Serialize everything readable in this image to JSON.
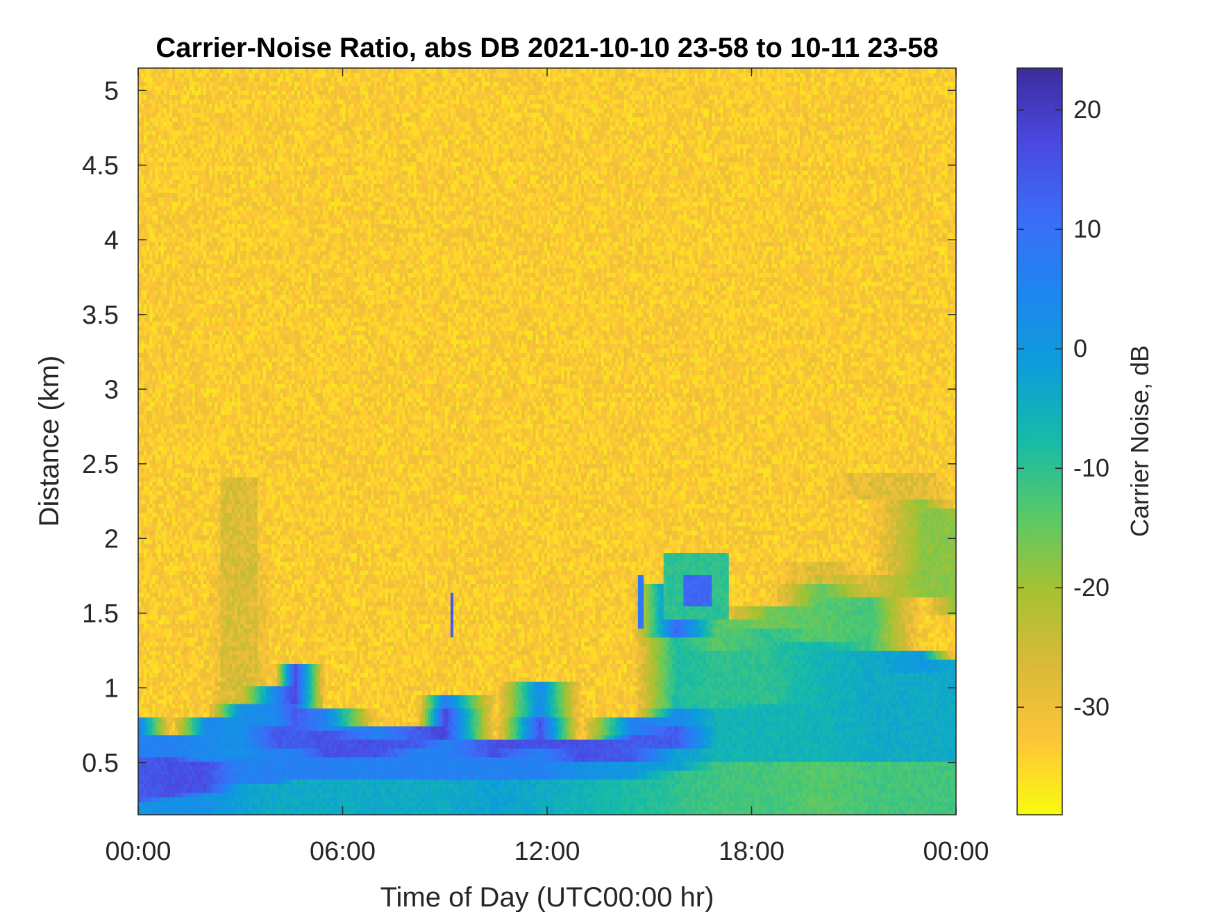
{
  "chart_data": {
    "type": "heatmap",
    "title": "Carrier-Noise Ratio, abs DB 2021-10-10 23-58 to 10-11 23-58",
    "xlabel": "Time of Day (UTC00:00 hr)",
    "ylabel": "Distance (km)",
    "xlim": [
      0,
      24
    ],
    "ylim": [
      0.15,
      5.15
    ],
    "x_ticks": [
      0,
      6,
      12,
      18,
      24
    ],
    "x_tick_labels": [
      "00:00",
      "06:00",
      "12:00",
      "18:00",
      "00:00"
    ],
    "y_ticks": [
      0.5,
      1,
      1.5,
      2,
      2.5,
      3,
      3.5,
      4,
      4.5,
      5
    ],
    "y_tick_labels": [
      "0.5",
      "1",
      "1.5",
      "2",
      "2.5",
      "3",
      "3.5",
      "4",
      "4.5",
      "5"
    ],
    "grid": false,
    "colorbar": {
      "label": "Carrier Noise, dB",
      "range": [
        -39,
        23.5
      ],
      "ticks": [
        -30,
        -20,
        -10,
        0,
        10,
        20
      ],
      "tick_labels": [
        "-30",
        "-20",
        "-10",
        "0",
        "10",
        "20"
      ],
      "colormap_stops": [
        "#f9fb0e",
        "#fec538",
        "#d9ba38",
        "#a6c232",
        "#58c968",
        "#17bba7",
        "#0c9ed9",
        "#1e86ef",
        "#3b6df8",
        "#4a48e0",
        "#3c2c9c"
      ]
    },
    "value_description_unused": "",
    "profiles": [
      {
        "t": 0.0,
        "layers": [
          [
            0.15,
            0.25,
            2
          ],
          [
            0.25,
            0.55,
            14
          ],
          [
            0.55,
            0.8,
            6
          ],
          [
            0.8,
            5.15,
            -33
          ]
        ]
      },
      {
        "t": 1.0,
        "layers": [
          [
            0.15,
            0.28,
            2
          ],
          [
            0.28,
            0.55,
            16
          ],
          [
            0.55,
            0.7,
            6
          ],
          [
            0.7,
            5.15,
            -33
          ]
        ]
      },
      {
        "t": 2.0,
        "layers": [
          [
            0.15,
            0.3,
            2
          ],
          [
            0.3,
            0.5,
            16
          ],
          [
            0.5,
            0.8,
            4
          ],
          [
            0.8,
            5.15,
            -33
          ]
        ]
      },
      {
        "t": 3.0,
        "layers": [
          [
            0.15,
            0.35,
            -2
          ],
          [
            0.35,
            0.55,
            6
          ],
          [
            0.55,
            0.9,
            2
          ],
          [
            0.9,
            1.9,
            -26
          ],
          [
            1.9,
            5.15,
            -33
          ]
        ]
      },
      {
        "t": 4.0,
        "layers": [
          [
            0.15,
            0.35,
            -4
          ],
          [
            0.35,
            0.6,
            6
          ],
          [
            0.6,
            0.75,
            14
          ],
          [
            0.75,
            1.0,
            4
          ],
          [
            1.0,
            5.15,
            -33
          ]
        ]
      },
      {
        "t": 4.6,
        "layers": [
          [
            0.15,
            0.4,
            -4
          ],
          [
            0.4,
            0.6,
            6
          ],
          [
            0.6,
            0.9,
            14
          ],
          [
            0.9,
            1.15,
            18
          ],
          [
            1.15,
            5.15,
            -33
          ]
        ]
      },
      {
        "t": 5.5,
        "layers": [
          [
            0.15,
            0.4,
            -4
          ],
          [
            0.4,
            0.55,
            6
          ],
          [
            0.55,
            0.72,
            16
          ],
          [
            0.72,
            0.85,
            6
          ],
          [
            0.85,
            5.15,
            -33
          ]
        ]
      },
      {
        "t": 7.0,
        "layers": [
          [
            0.15,
            0.4,
            -4
          ],
          [
            0.4,
            0.55,
            6
          ],
          [
            0.55,
            0.65,
            16
          ],
          [
            0.65,
            0.75,
            6
          ],
          [
            0.75,
            5.15,
            -33
          ]
        ]
      },
      {
        "t": 8.2,
        "layers": [
          [
            0.15,
            0.4,
            -4
          ],
          [
            0.4,
            0.6,
            6
          ],
          [
            0.6,
            0.75,
            14
          ],
          [
            0.75,
            5.15,
            -33
          ]
        ]
      },
      {
        "t": 9.0,
        "layers": [
          [
            0.15,
            0.4,
            -4
          ],
          [
            0.4,
            0.65,
            6
          ],
          [
            0.65,
            0.85,
            18
          ],
          [
            0.85,
            0.95,
            8
          ],
          [
            0.95,
            5.15,
            -33
          ]
        ]
      },
      {
        "t": 10.5,
        "layers": [
          [
            0.15,
            0.4,
            -2
          ],
          [
            0.4,
            0.55,
            6
          ],
          [
            0.55,
            0.65,
            16
          ],
          [
            0.65,
            5.15,
            -33
          ]
        ]
      },
      {
        "t": 11.8,
        "layers": [
          [
            0.15,
            0.4,
            -4
          ],
          [
            0.4,
            0.6,
            6
          ],
          [
            0.6,
            0.8,
            16
          ],
          [
            0.8,
            1.05,
            4
          ],
          [
            1.05,
            5.15,
            -33
          ]
        ]
      },
      {
        "t": 13.0,
        "layers": [
          [
            0.15,
            0.4,
            -6
          ],
          [
            0.4,
            0.5,
            2
          ],
          [
            0.5,
            0.65,
            16
          ],
          [
            0.65,
            5.15,
            -33
          ]
        ]
      },
      {
        "t": 14.5,
        "layers": [
          [
            0.15,
            0.4,
            -8
          ],
          [
            0.4,
            0.5,
            0
          ],
          [
            0.5,
            0.7,
            14
          ],
          [
            0.7,
            0.8,
            6
          ],
          [
            0.8,
            5.15,
            -33
          ]
        ]
      },
      {
        "t": 15.8,
        "layers": [
          [
            0.15,
            0.45,
            -10
          ],
          [
            0.45,
            0.6,
            -2
          ],
          [
            0.6,
            0.75,
            14
          ],
          [
            0.75,
            0.85,
            4
          ],
          [
            0.85,
            1.35,
            -8
          ],
          [
            1.35,
            1.7,
            12
          ],
          [
            1.7,
            5.15,
            -33
          ]
        ]
      },
      {
        "t": 17.0,
        "layers": [
          [
            0.15,
            0.5,
            -12
          ],
          [
            0.5,
            0.85,
            -6
          ],
          [
            0.85,
            1.25,
            -10
          ],
          [
            1.25,
            1.45,
            -14
          ],
          [
            1.45,
            5.15,
            -33
          ]
        ]
      },
      {
        "t": 18.5,
        "layers": [
          [
            0.15,
            0.5,
            -12
          ],
          [
            0.5,
            0.9,
            -6
          ],
          [
            0.9,
            1.4,
            -10
          ],
          [
            1.4,
            1.55,
            -16
          ],
          [
            1.55,
            5.15,
            -33
          ]
        ]
      },
      {
        "t": 20.0,
        "layers": [
          [
            0.15,
            0.5,
            -14
          ],
          [
            0.5,
            1.3,
            -6
          ],
          [
            1.3,
            1.7,
            -14
          ],
          [
            1.7,
            1.85,
            -26
          ],
          [
            1.85,
            5.15,
            -33
          ]
        ]
      },
      {
        "t": 21.5,
        "layers": [
          [
            0.15,
            0.5,
            -12
          ],
          [
            0.5,
            1.25,
            -4
          ],
          [
            1.25,
            1.6,
            -12
          ],
          [
            1.6,
            1.75,
            -26
          ],
          [
            1.75,
            2.25,
            -33
          ],
          [
            2.25,
            2.45,
            -28
          ],
          [
            2.45,
            5.15,
            -33
          ]
        ]
      },
      {
        "t": 23.0,
        "layers": [
          [
            0.15,
            0.5,
            -12
          ],
          [
            0.5,
            1.1,
            -4
          ],
          [
            1.1,
            1.25,
            0
          ],
          [
            1.25,
            1.6,
            -33
          ],
          [
            1.6,
            2.25,
            -18
          ],
          [
            2.25,
            2.45,
            -28
          ],
          [
            2.45,
            5.15,
            -33
          ]
        ]
      },
      {
        "t": 24.0,
        "layers": [
          [
            0.15,
            0.5,
            -12
          ],
          [
            0.5,
            1.2,
            -4
          ],
          [
            1.2,
            1.5,
            -33
          ],
          [
            1.5,
            2.2,
            -18
          ],
          [
            2.2,
            5.15,
            -33
          ]
        ]
      }
    ],
    "plumes": [
      {
        "t0": 2.4,
        "t1": 3.5,
        "y0": 0.5,
        "y1": 2.4,
        "value": -27
      },
      {
        "t0": 9.15,
        "t1": 9.25,
        "y0": 1.35,
        "y1": 1.65,
        "value": 14
      },
      {
        "t0": 14.7,
        "t1": 14.85,
        "y0": 1.4,
        "y1": 1.75,
        "value": 8
      },
      {
        "t0": 15.4,
        "t1": 17.3,
        "y0": 1.45,
        "y1": 1.9,
        "value": -10
      },
      {
        "t0": 16.0,
        "t1": 16.8,
        "y0": 1.55,
        "y1": 1.75,
        "value": 12
      }
    ]
  }
}
